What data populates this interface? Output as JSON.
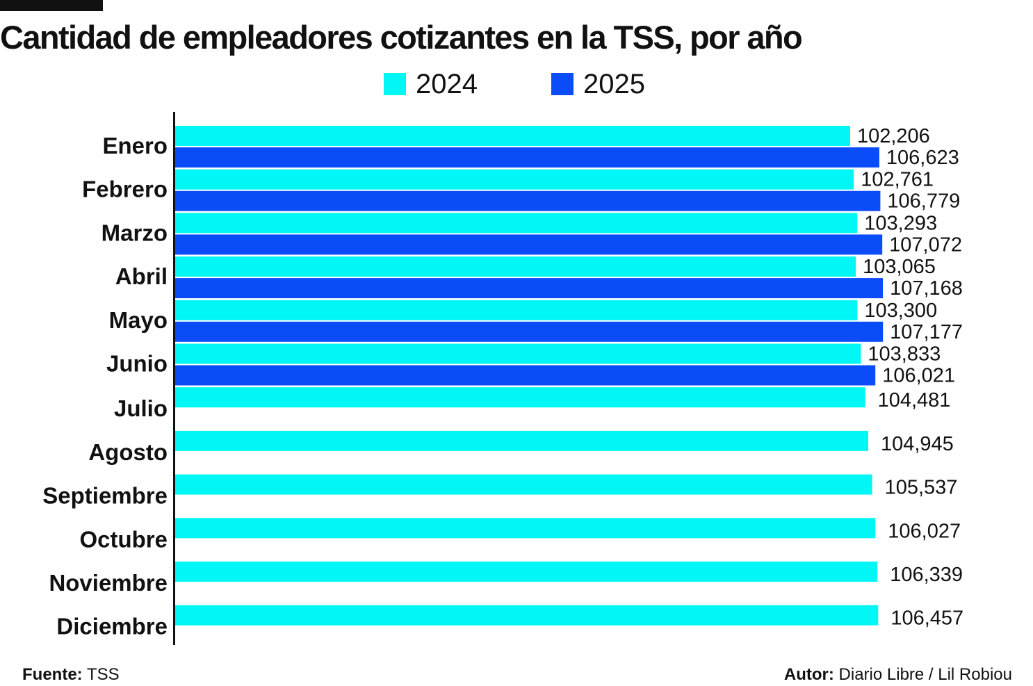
{
  "chart_data": {
    "type": "bar",
    "orientation": "horizontal",
    "title": "Cantidad de empleadores cotizantes en la TSS, por año",
    "categories": [
      "Enero",
      "Febrero",
      "Marzo",
      "Abril",
      "Mayo",
      "Junio",
      "Julio",
      "Agosto",
      "Septiembre",
      "Octubre",
      "Noviembre",
      "Diciembre"
    ],
    "series": [
      {
        "name": "2024",
        "color": "#00f7f5",
        "values": [
          102206,
          102761,
          103293,
          103065,
          103300,
          103833,
          104481,
          104945,
          105537,
          106027,
          106339,
          106457
        ],
        "labels": [
          "102,206",
          "102,761",
          "103,293",
          "103,065",
          "103,300",
          "103,833",
          "104,481",
          "104,945",
          "105,537",
          "106,027",
          "106,339",
          "106,457"
        ]
      },
      {
        "name": "2025",
        "color": "#0a4cf7",
        "values": [
          106623,
          106779,
          107072,
          107168,
          107177,
          106021,
          null,
          null,
          null,
          null,
          null,
          null
        ],
        "labels": [
          "106,623",
          "106,779",
          "107,072",
          "107,168",
          "107,177",
          "106,021",
          null,
          null,
          null,
          null,
          null,
          null
        ]
      }
    ],
    "xlim": [
      0,
      108000
    ],
    "grid": false,
    "legend": "top-center"
  },
  "footer": {
    "source_key": "Fuente:",
    "source_value": "TSS",
    "author_key": "Autor:",
    "author_value": "Diario Libre / Lil Robiou"
  }
}
